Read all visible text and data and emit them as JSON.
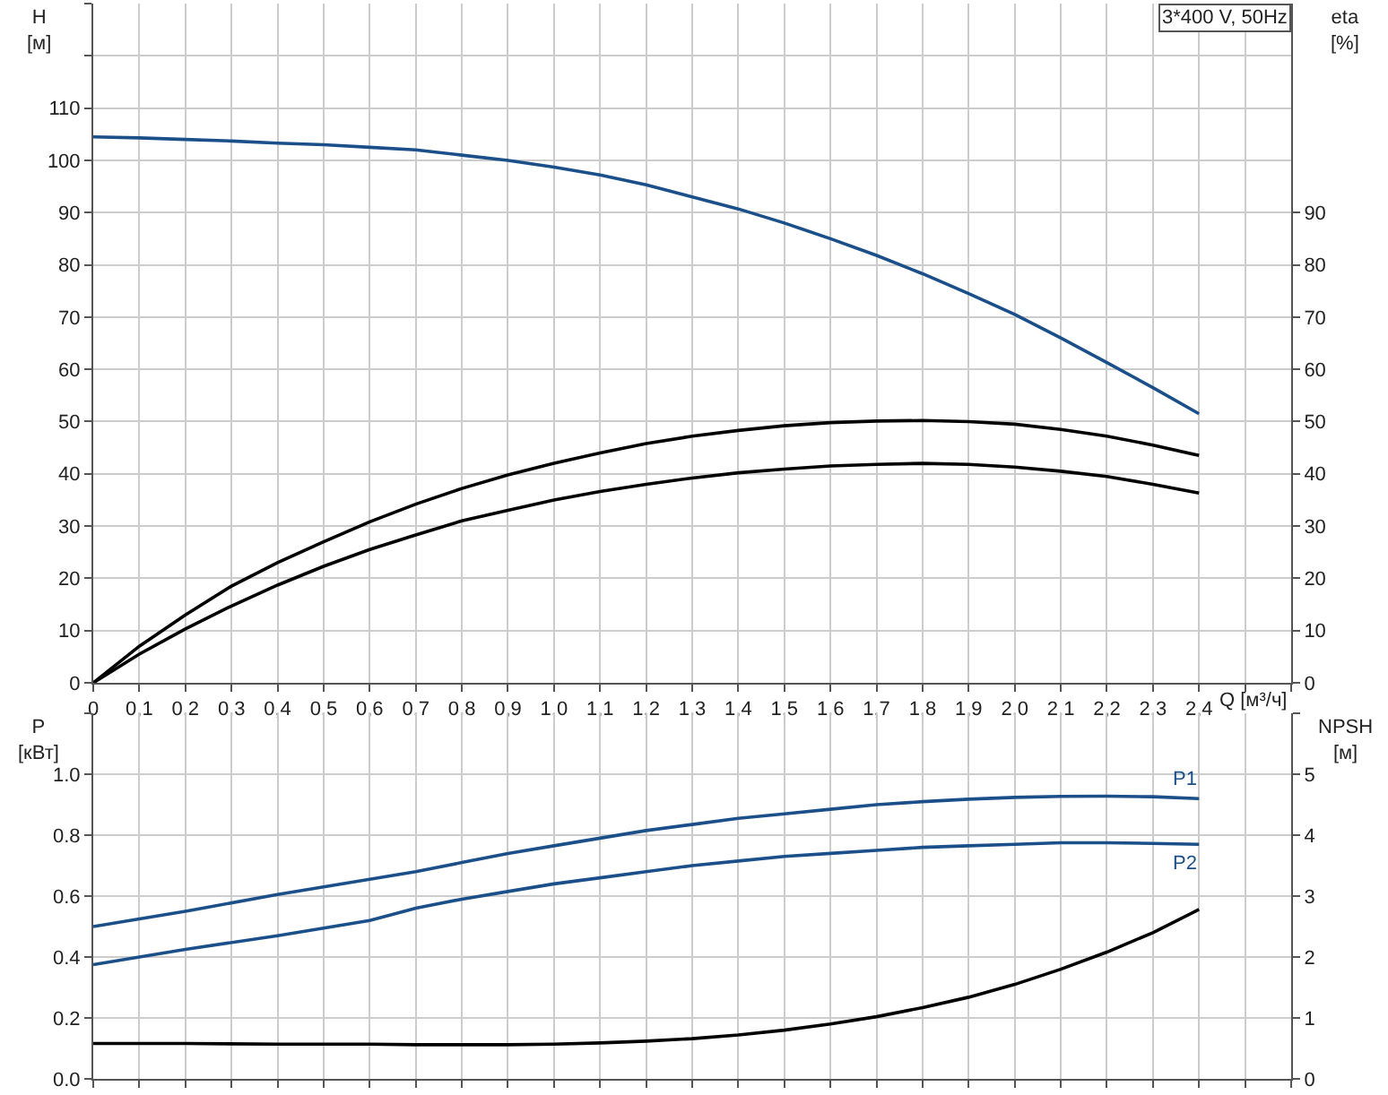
{
  "chart_data": [
    {
      "type": "line",
      "xlabel": "Q [м³/ч]",
      "ylabel": "H\n[м]",
      "y2label": "eta\n[%]",
      "annotations": [
        "3*400 V, 50Hz"
      ],
      "x": [
        0,
        0.1,
        0.2,
        0.3,
        0.4,
        0.5,
        0.6,
        0.7,
        0.8,
        0.9,
        1.0,
        1.1,
        1.2,
        1.3,
        1.4,
        1.5,
        1.6,
        1.7,
        1.8,
        1.9,
        2.0,
        2.1,
        2.2,
        2.3,
        2.4
      ],
      "series": [
        {
          "color": "#1a4f8a",
          "values": [
            104.5,
            104.3,
            104,
            103.7,
            103.3,
            103,
            102.5,
            102,
            101,
            100,
            98.7,
            97.2,
            95.3,
            93,
            90.7,
            88,
            85,
            81.8,
            78.3,
            74.5,
            70.5,
            66,
            61.3,
            56.5,
            51.5
          ]
        },
        {
          "color": "#000000",
          "axis": "y2",
          "values": [
            0,
            7,
            13,
            18.5,
            23,
            27,
            30.8,
            34.2,
            37.2,
            39.8,
            42,
            44,
            45.8,
            47.2,
            48.3,
            49.2,
            49.8,
            50.1,
            50.2,
            50,
            49.5,
            48.5,
            47.2,
            45.5,
            43.5
          ]
        },
        {
          "color": "#000000",
          "axis": "y2",
          "values": [
            0,
            5.5,
            10.3,
            14.7,
            18.7,
            22.3,
            25.5,
            28.3,
            31,
            33,
            35,
            36.6,
            38,
            39.2,
            40.2,
            40.9,
            41.5,
            41.8,
            42,
            41.8,
            41.3,
            40.5,
            39.5,
            38,
            36.3
          ]
        }
      ],
      "xlim": [
        0,
        2.6
      ],
      "xticks": [
        0,
        {
          "value": 0.1,
          "label": "0,1"
        },
        {
          "value": 0.2,
          "label": "0,2"
        },
        {
          "value": 0.3,
          "label": "0,3"
        },
        {
          "value": 0.4,
          "label": "0,4"
        },
        {
          "value": 0.5,
          "label": "0,5"
        },
        {
          "value": 0.6,
          "label": "0,6"
        },
        {
          "value": 0.7,
          "label": "0,7"
        },
        {
          "value": 0.8,
          "label": "0,8"
        },
        {
          "value": 0.9,
          "label": "0,9"
        },
        {
          "value": 1.0,
          "label": "1,0"
        },
        {
          "value": 1.1,
          "label": "1,1"
        },
        {
          "value": 1.2,
          "label": "1,2"
        },
        {
          "value": 1.3,
          "label": "1,3"
        },
        {
          "value": 1.4,
          "label": "1,4"
        },
        {
          "value": 1.5,
          "label": "1,5"
        },
        {
          "value": 1.6,
          "label": "1,6"
        },
        {
          "value": 1.7,
          "label": "1,7"
        },
        {
          "value": 1.8,
          "label": "1,8"
        },
        {
          "value": 1.9,
          "label": "1,9"
        },
        {
          "value": 2.0,
          "label": "2,0"
        },
        {
          "value": 2.1,
          "label": "2,1"
        },
        {
          "value": 2.2,
          "label": "2,2"
        },
        {
          "value": 2.3,
          "label": "2,3"
        },
        {
          "value": 2.4,
          "label": "2,4"
        },
        {
          "value": 2.5,
          "label": null
        },
        {
          "value": 2.6,
          "label": null
        }
      ],
      "ylim": [
        0,
        130
      ],
      "yticks": [
        0,
        10,
        20,
        30,
        40,
        50,
        60,
        70,
        80,
        90,
        100,
        110,
        {
          "value": 120,
          "label": null
        },
        {
          "value": 130,
          "label": null
        }
      ],
      "y2lim": [
        0,
        130
      ],
      "y2ticks": [
        0,
        10,
        20,
        30,
        40,
        50,
        60,
        70,
        80,
        90
      ],
      "grid": true
    },
    {
      "type": "line",
      "ylabel": "P\n[кВт]",
      "y2label": "NPSH\n[м]",
      "x": [
        0,
        0.2,
        0.4,
        0.6,
        0.7,
        0.8,
        0.9,
        1.0,
        1.1,
        1.2,
        1.3,
        1.4,
        1.5,
        1.6,
        1.7,
        1.8,
        1.9,
        2.0,
        2.1,
        2.2,
        2.3,
        2.4
      ],
      "series": [
        {
          "name": "P1",
          "color": "#1a4f8a",
          "values": [
            0.5,
            0.55,
            0.605,
            0.655,
            0.68,
            0.71,
            0.74,
            0.765,
            0.79,
            0.815,
            0.835,
            0.855,
            0.87,
            0.885,
            0.9,
            0.91,
            0.918,
            0.924,
            0.927,
            0.928,
            0.926,
            0.92
          ]
        },
        {
          "name": "P2",
          "color": "#1a4f8a",
          "values": [
            0.375,
            0.425,
            0.47,
            0.52,
            0.56,
            0.59,
            0.615,
            0.64,
            0.66,
            0.68,
            0.7,
            0.715,
            0.73,
            0.74,
            0.75,
            0.76,
            0.765,
            0.77,
            0.775,
            0.775,
            0.773,
            0.77
          ]
        },
        {
          "color": "#000000",
          "axis": "y2",
          "values": [
            0.58,
            0.58,
            0.57,
            0.57,
            0.56,
            0.56,
            0.56,
            0.57,
            0.59,
            0.62,
            0.66,
            0.72,
            0.8,
            0.9,
            1.02,
            1.17,
            1.34,
            1.55,
            1.8,
            2.08,
            2.4,
            2.78
          ]
        }
      ],
      "xlim": [
        0,
        2.6
      ],
      "xticks": [
        0,
        0.1,
        0.2,
        0.3,
        0.4,
        0.5,
        0.6,
        0.7,
        0.8,
        0.9,
        1.0,
        1.1,
        1.2,
        1.3,
        1.4,
        1.5,
        1.6,
        1.7,
        1.8,
        1.9,
        2.0,
        2.1,
        2.2,
        2.3,
        2.4,
        2.5,
        2.6
      ],
      "ylim": [
        0,
        1.2
      ],
      "yticks": [
        {
          "value": 0,
          "label": "0.0"
        },
        0.2,
        0.4,
        0.6,
        0.8,
        {
          "value": 1.0,
          "label": "1.0"
        },
        {
          "value": 1.2,
          "label": null
        }
      ],
      "y2lim": [
        0,
        6
      ],
      "y2ticks": [
        0,
        1,
        2,
        3,
        4,
        5,
        {
          "value": 6,
          "label": null
        }
      ],
      "tick_labels": "y",
      "grid": true
    }
  ]
}
